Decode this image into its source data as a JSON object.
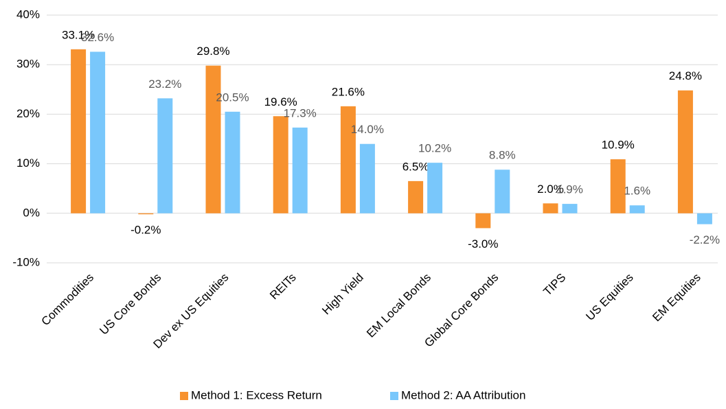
{
  "chart_data": {
    "type": "bar",
    "categories": [
      "Commodities",
      "US Core Bonds",
      "Dev ex US Equities",
      "REITs",
      "High Yield",
      "EM Local Bonds",
      "Global Core Bonds",
      "TIPS",
      "US Equities",
      "EM Equities"
    ],
    "series": [
      {
        "name": "Method 1: Excess Return",
        "color": "#f7922f",
        "values": [
          33.1,
          -0.2,
          29.8,
          19.6,
          21.6,
          6.5,
          -3.0,
          2.0,
          10.9,
          24.8
        ],
        "value_labels": [
          "33.1%",
          "-0.2%",
          "29.8%",
          "19.6%",
          "21.6%",
          "6.5%",
          "-3.0%",
          "2.0%",
          "10.9%",
          "24.8%"
        ]
      },
      {
        "name": "Method 2: AA Attribution",
        "color": "#79c7fb",
        "values": [
          32.6,
          23.2,
          20.5,
          17.3,
          14.0,
          10.2,
          8.8,
          1.9,
          1.6,
          -2.2
        ],
        "value_labels": [
          "32.6%",
          "23.2%",
          "20.5%",
          "17.3%",
          "14.0%",
          "10.2%",
          "8.8%",
          "1.9%",
          "1.6%",
          "-2.2%"
        ]
      }
    ],
    "ylim": [
      -10,
      40
    ],
    "yticks": [
      {
        "value": -10,
        "label": "-10%"
      },
      {
        "value": 0,
        "label": "0%"
      },
      {
        "value": 10,
        "label": "10%"
      },
      {
        "value": 20,
        "label": "20%"
      },
      {
        "value": 30,
        "label": "30%"
      },
      {
        "value": 40,
        "label": "40%"
      }
    ],
    "grid": true,
    "legend": "bottom"
  }
}
